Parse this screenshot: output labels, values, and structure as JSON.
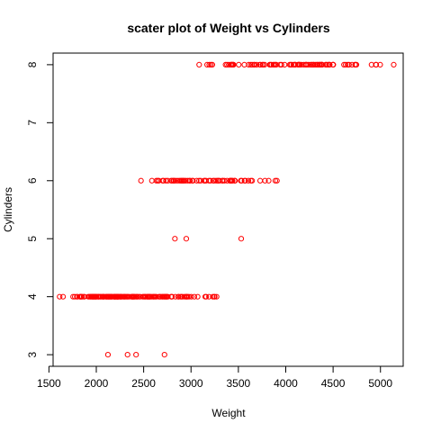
{
  "chart_data": {
    "type": "scatter",
    "title": "scater plot of Weight vs Cylinders",
    "xlabel": "Weight",
    "ylabel": "Cylinders",
    "xlim": [
      1544,
      5240
    ],
    "ylim": [
      2.8,
      8.2
    ],
    "x_ticks": [
      1500,
      2000,
      2500,
      3000,
      3500,
      4000,
      4500,
      5000
    ],
    "y_ticks": [
      3,
      4,
      5,
      6,
      7,
      8
    ],
    "grid": false,
    "legend": "none",
    "point_color": "#ff0000",
    "points": [
      {
        "x": 2123,
        "y": 3
      },
      {
        "x": 2330,
        "y": 3
      },
      {
        "x": 2420,
        "y": 3
      },
      {
        "x": 2720,
        "y": 3
      },
      {
        "x": 1613,
        "y": 4
      },
      {
        "x": 1649,
        "y": 4
      },
      {
        "x": 1755,
        "y": 4
      },
      {
        "x": 1773,
        "y": 4
      },
      {
        "x": 1795,
        "y": 4
      },
      {
        "x": 1800,
        "y": 4
      },
      {
        "x": 1825,
        "y": 4
      },
      {
        "x": 1834,
        "y": 4
      },
      {
        "x": 1835,
        "y": 4
      },
      {
        "x": 1845,
        "y": 4
      },
      {
        "x": 1850,
        "y": 4
      },
      {
        "x": 1867,
        "y": 4
      },
      {
        "x": 1875,
        "y": 4
      },
      {
        "x": 1915,
        "y": 4
      },
      {
        "x": 1925,
        "y": 4
      },
      {
        "x": 1937,
        "y": 4
      },
      {
        "x": 1940,
        "y": 4
      },
      {
        "x": 1950,
        "y": 4
      },
      {
        "x": 1955,
        "y": 4
      },
      {
        "x": 1963,
        "y": 4
      },
      {
        "x": 1965,
        "y": 4
      },
      {
        "x": 1968,
        "y": 4
      },
      {
        "x": 1975,
        "y": 4
      },
      {
        "x": 1980,
        "y": 4
      },
      {
        "x": 1985,
        "y": 4
      },
      {
        "x": 1990,
        "y": 4
      },
      {
        "x": 1995,
        "y": 4
      },
      {
        "x": 2000,
        "y": 4
      },
      {
        "x": 2003,
        "y": 4
      },
      {
        "x": 2019,
        "y": 4
      },
      {
        "x": 2020,
        "y": 4
      },
      {
        "x": 2025,
        "y": 4
      },
      {
        "x": 2035,
        "y": 4
      },
      {
        "x": 2045,
        "y": 4
      },
      {
        "x": 2050,
        "y": 4
      },
      {
        "x": 2065,
        "y": 4
      },
      {
        "x": 2070,
        "y": 4
      },
      {
        "x": 2074,
        "y": 4
      },
      {
        "x": 2075,
        "y": 4
      },
      {
        "x": 2085,
        "y": 4
      },
      {
        "x": 2100,
        "y": 4
      },
      {
        "x": 2108,
        "y": 4
      },
      {
        "x": 2110,
        "y": 4
      },
      {
        "x": 2120,
        "y": 4
      },
      {
        "x": 2125,
        "y": 4
      },
      {
        "x": 2130,
        "y": 4
      },
      {
        "x": 2135,
        "y": 4
      },
      {
        "x": 2144,
        "y": 4
      },
      {
        "x": 2145,
        "y": 4
      },
      {
        "x": 2155,
        "y": 4
      },
      {
        "x": 2158,
        "y": 4
      },
      {
        "x": 2164,
        "y": 4
      },
      {
        "x": 2171,
        "y": 4
      },
      {
        "x": 2188,
        "y": 4
      },
      {
        "x": 2189,
        "y": 4
      },
      {
        "x": 2190,
        "y": 4
      },
      {
        "x": 2200,
        "y": 4
      },
      {
        "x": 2202,
        "y": 4
      },
      {
        "x": 2210,
        "y": 4
      },
      {
        "x": 2215,
        "y": 4
      },
      {
        "x": 2220,
        "y": 4
      },
      {
        "x": 2223,
        "y": 4
      },
      {
        "x": 2226,
        "y": 4
      },
      {
        "x": 2228,
        "y": 4
      },
      {
        "x": 2230,
        "y": 4
      },
      {
        "x": 2234,
        "y": 4
      },
      {
        "x": 2245,
        "y": 4
      },
      {
        "x": 2254,
        "y": 4
      },
      {
        "x": 2255,
        "y": 4
      },
      {
        "x": 2264,
        "y": 4
      },
      {
        "x": 2265,
        "y": 4
      },
      {
        "x": 2278,
        "y": 4
      },
      {
        "x": 2290,
        "y": 4
      },
      {
        "x": 2295,
        "y": 4
      },
      {
        "x": 2300,
        "y": 4
      },
      {
        "x": 2310,
        "y": 4
      },
      {
        "x": 2320,
        "y": 4
      },
      {
        "x": 2330,
        "y": 4
      },
      {
        "x": 2335,
        "y": 4
      },
      {
        "x": 2350,
        "y": 4
      },
      {
        "x": 2370,
        "y": 4
      },
      {
        "x": 2379,
        "y": 4
      },
      {
        "x": 2380,
        "y": 4
      },
      {
        "x": 2385,
        "y": 4
      },
      {
        "x": 2391,
        "y": 4
      },
      {
        "x": 2395,
        "y": 4
      },
      {
        "x": 2400,
        "y": 4
      },
      {
        "x": 2408,
        "y": 4
      },
      {
        "x": 2420,
        "y": 4
      },
      {
        "x": 2430,
        "y": 4
      },
      {
        "x": 2434,
        "y": 4
      },
      {
        "x": 2450,
        "y": 4
      },
      {
        "x": 2464,
        "y": 4
      },
      {
        "x": 2490,
        "y": 4
      },
      {
        "x": 2500,
        "y": 4
      },
      {
        "x": 2511,
        "y": 4
      },
      {
        "x": 2515,
        "y": 4
      },
      {
        "x": 2525,
        "y": 4
      },
      {
        "x": 2540,
        "y": 4
      },
      {
        "x": 2542,
        "y": 4
      },
      {
        "x": 2545,
        "y": 4
      },
      {
        "x": 2556,
        "y": 4
      },
      {
        "x": 2560,
        "y": 4
      },
      {
        "x": 2565,
        "y": 4
      },
      {
        "x": 2572,
        "y": 4
      },
      {
        "x": 2585,
        "y": 4
      },
      {
        "x": 2600,
        "y": 4
      },
      {
        "x": 2605,
        "y": 4
      },
      {
        "x": 2615,
        "y": 4
      },
      {
        "x": 2625,
        "y": 4
      },
      {
        "x": 2635,
        "y": 4
      },
      {
        "x": 2660,
        "y": 4
      },
      {
        "x": 2670,
        "y": 4
      },
      {
        "x": 2678,
        "y": 4
      },
      {
        "x": 2694,
        "y": 4
      },
      {
        "x": 2700,
        "y": 4
      },
      {
        "x": 2711,
        "y": 4
      },
      {
        "x": 2720,
        "y": 4
      },
      {
        "x": 2725,
        "y": 4
      },
      {
        "x": 2735,
        "y": 4
      },
      {
        "x": 2740,
        "y": 4
      },
      {
        "x": 2745,
        "y": 4
      },
      {
        "x": 2755,
        "y": 4
      },
      {
        "x": 2790,
        "y": 4
      },
      {
        "x": 2795,
        "y": 4
      },
      {
        "x": 2800,
        "y": 4
      },
      {
        "x": 2835,
        "y": 4
      },
      {
        "x": 2865,
        "y": 4
      },
      {
        "x": 2870,
        "y": 4
      },
      {
        "x": 2890,
        "y": 4
      },
      {
        "x": 2900,
        "y": 4
      },
      {
        "x": 2910,
        "y": 4
      },
      {
        "x": 2930,
        "y": 4
      },
      {
        "x": 2945,
        "y": 4
      },
      {
        "x": 2950,
        "y": 4
      },
      {
        "x": 2957,
        "y": 4
      },
      {
        "x": 2965,
        "y": 4
      },
      {
        "x": 2979,
        "y": 4
      },
      {
        "x": 3003,
        "y": 4
      },
      {
        "x": 3035,
        "y": 4
      },
      {
        "x": 3070,
        "y": 4
      },
      {
        "x": 3150,
        "y": 4
      },
      {
        "x": 3160,
        "y": 4
      },
      {
        "x": 3190,
        "y": 4
      },
      {
        "x": 3230,
        "y": 4
      },
      {
        "x": 3245,
        "y": 4
      },
      {
        "x": 3250,
        "y": 4
      },
      {
        "x": 3270,
        "y": 4
      },
      {
        "x": 2830,
        "y": 5
      },
      {
        "x": 2950,
        "y": 5
      },
      {
        "x": 3530,
        "y": 5
      },
      {
        "x": 2472,
        "y": 6
      },
      {
        "x": 2587,
        "y": 6
      },
      {
        "x": 2634,
        "y": 6
      },
      {
        "x": 2648,
        "y": 6
      },
      {
        "x": 2660,
        "y": 6
      },
      {
        "x": 2700,
        "y": 6
      },
      {
        "x": 2710,
        "y": 6
      },
      {
        "x": 2735,
        "y": 6
      },
      {
        "x": 2755,
        "y": 6
      },
      {
        "x": 2790,
        "y": 6
      },
      {
        "x": 2800,
        "y": 6
      },
      {
        "x": 2815,
        "y": 6
      },
      {
        "x": 2820,
        "y": 6
      },
      {
        "x": 2835,
        "y": 6
      },
      {
        "x": 2855,
        "y": 6
      },
      {
        "x": 2875,
        "y": 6
      },
      {
        "x": 2890,
        "y": 6
      },
      {
        "x": 2900,
        "y": 6
      },
      {
        "x": 2910,
        "y": 6
      },
      {
        "x": 2920,
        "y": 6
      },
      {
        "x": 2930,
        "y": 6
      },
      {
        "x": 2945,
        "y": 6
      },
      {
        "x": 2965,
        "y": 6
      },
      {
        "x": 2984,
        "y": 6
      },
      {
        "x": 2990,
        "y": 6
      },
      {
        "x": 3012,
        "y": 6
      },
      {
        "x": 3021,
        "y": 6
      },
      {
        "x": 3060,
        "y": 6
      },
      {
        "x": 3085,
        "y": 6
      },
      {
        "x": 3102,
        "y": 6
      },
      {
        "x": 3139,
        "y": 6
      },
      {
        "x": 3145,
        "y": 6
      },
      {
        "x": 3158,
        "y": 6
      },
      {
        "x": 3190,
        "y": 6
      },
      {
        "x": 3205,
        "y": 6
      },
      {
        "x": 3233,
        "y": 6
      },
      {
        "x": 3245,
        "y": 6
      },
      {
        "x": 3265,
        "y": 6
      },
      {
        "x": 3282,
        "y": 6
      },
      {
        "x": 3288,
        "y": 6
      },
      {
        "x": 3302,
        "y": 6
      },
      {
        "x": 3329,
        "y": 6
      },
      {
        "x": 3336,
        "y": 6
      },
      {
        "x": 3353,
        "y": 6
      },
      {
        "x": 3381,
        "y": 6
      },
      {
        "x": 3410,
        "y": 6
      },
      {
        "x": 3415,
        "y": 6
      },
      {
        "x": 3425,
        "y": 6
      },
      {
        "x": 3430,
        "y": 6
      },
      {
        "x": 3439,
        "y": 6
      },
      {
        "x": 3459,
        "y": 6
      },
      {
        "x": 3465,
        "y": 6
      },
      {
        "x": 3525,
        "y": 6
      },
      {
        "x": 3535,
        "y": 6
      },
      {
        "x": 3565,
        "y": 6
      },
      {
        "x": 3574,
        "y": 6
      },
      {
        "x": 3605,
        "y": 6
      },
      {
        "x": 3632,
        "y": 6
      },
      {
        "x": 3645,
        "y": 6
      },
      {
        "x": 3730,
        "y": 6
      },
      {
        "x": 3781,
        "y": 6
      },
      {
        "x": 3820,
        "y": 6
      },
      {
        "x": 3890,
        "y": 6
      },
      {
        "x": 3907,
        "y": 6
      },
      {
        "x": 3086,
        "y": 8
      },
      {
        "x": 3170,
        "y": 8
      },
      {
        "x": 3193,
        "y": 8
      },
      {
        "x": 3210,
        "y": 8
      },
      {
        "x": 3225,
        "y": 8
      },
      {
        "x": 3365,
        "y": 8
      },
      {
        "x": 3380,
        "y": 8
      },
      {
        "x": 3399,
        "y": 8
      },
      {
        "x": 3420,
        "y": 8
      },
      {
        "x": 3425,
        "y": 8
      },
      {
        "x": 3433,
        "y": 8
      },
      {
        "x": 3436,
        "y": 8
      },
      {
        "x": 3445,
        "y": 8
      },
      {
        "x": 3449,
        "y": 8
      },
      {
        "x": 3504,
        "y": 8
      },
      {
        "x": 3563,
        "y": 8
      },
      {
        "x": 3609,
        "y": 8
      },
      {
        "x": 3630,
        "y": 8
      },
      {
        "x": 3645,
        "y": 8
      },
      {
        "x": 3664,
        "y": 8
      },
      {
        "x": 3672,
        "y": 8
      },
      {
        "x": 3693,
        "y": 8
      },
      {
        "x": 3725,
        "y": 8
      },
      {
        "x": 3735,
        "y": 8
      },
      {
        "x": 3755,
        "y": 8
      },
      {
        "x": 3761,
        "y": 8
      },
      {
        "x": 3777,
        "y": 8
      },
      {
        "x": 3830,
        "y": 8
      },
      {
        "x": 3840,
        "y": 8
      },
      {
        "x": 3850,
        "y": 8
      },
      {
        "x": 3870,
        "y": 8
      },
      {
        "x": 3880,
        "y": 8
      },
      {
        "x": 3892,
        "y": 8
      },
      {
        "x": 3900,
        "y": 8
      },
      {
        "x": 3940,
        "y": 8
      },
      {
        "x": 3955,
        "y": 8
      },
      {
        "x": 3988,
        "y": 8
      },
      {
        "x": 4042,
        "y": 8
      },
      {
        "x": 4054,
        "y": 8
      },
      {
        "x": 4060,
        "y": 8
      },
      {
        "x": 4080,
        "y": 8
      },
      {
        "x": 4096,
        "y": 8
      },
      {
        "x": 4098,
        "y": 8
      },
      {
        "x": 4100,
        "y": 8
      },
      {
        "x": 4129,
        "y": 8
      },
      {
        "x": 4135,
        "y": 8
      },
      {
        "x": 4140,
        "y": 8
      },
      {
        "x": 4141,
        "y": 8
      },
      {
        "x": 4150,
        "y": 8
      },
      {
        "x": 4165,
        "y": 8
      },
      {
        "x": 4190,
        "y": 8
      },
      {
        "x": 4209,
        "y": 8
      },
      {
        "x": 4215,
        "y": 8
      },
      {
        "x": 4220,
        "y": 8
      },
      {
        "x": 4237,
        "y": 8
      },
      {
        "x": 4257,
        "y": 8
      },
      {
        "x": 4274,
        "y": 8
      },
      {
        "x": 4278,
        "y": 8
      },
      {
        "x": 4294,
        "y": 8
      },
      {
        "x": 4295,
        "y": 8
      },
      {
        "x": 4312,
        "y": 8
      },
      {
        "x": 4325,
        "y": 8
      },
      {
        "x": 4335,
        "y": 8
      },
      {
        "x": 4340,
        "y": 8
      },
      {
        "x": 4354,
        "y": 8
      },
      {
        "x": 4360,
        "y": 8
      },
      {
        "x": 4363,
        "y": 8
      },
      {
        "x": 4376,
        "y": 8
      },
      {
        "x": 4380,
        "y": 8
      },
      {
        "x": 4382,
        "y": 8
      },
      {
        "x": 4385,
        "y": 8
      },
      {
        "x": 4422,
        "y": 8
      },
      {
        "x": 4425,
        "y": 8
      },
      {
        "x": 4440,
        "y": 8
      },
      {
        "x": 4456,
        "y": 8
      },
      {
        "x": 4457,
        "y": 8
      },
      {
        "x": 4464,
        "y": 8
      },
      {
        "x": 4498,
        "y": 8
      },
      {
        "x": 4499,
        "y": 8
      },
      {
        "x": 4502,
        "y": 8
      },
      {
        "x": 4615,
        "y": 8
      },
      {
        "x": 4633,
        "y": 8
      },
      {
        "x": 4654,
        "y": 8
      },
      {
        "x": 4668,
        "y": 8
      },
      {
        "x": 4699,
        "y": 8
      },
      {
        "x": 4732,
        "y": 8
      },
      {
        "x": 4735,
        "y": 8
      },
      {
        "x": 4746,
        "y": 8
      },
      {
        "x": 4906,
        "y": 8
      },
      {
        "x": 4951,
        "y": 8
      },
      {
        "x": 4955,
        "y": 8
      },
      {
        "x": 4997,
        "y": 8
      },
      {
        "x": 5140,
        "y": 8
      }
    ]
  }
}
